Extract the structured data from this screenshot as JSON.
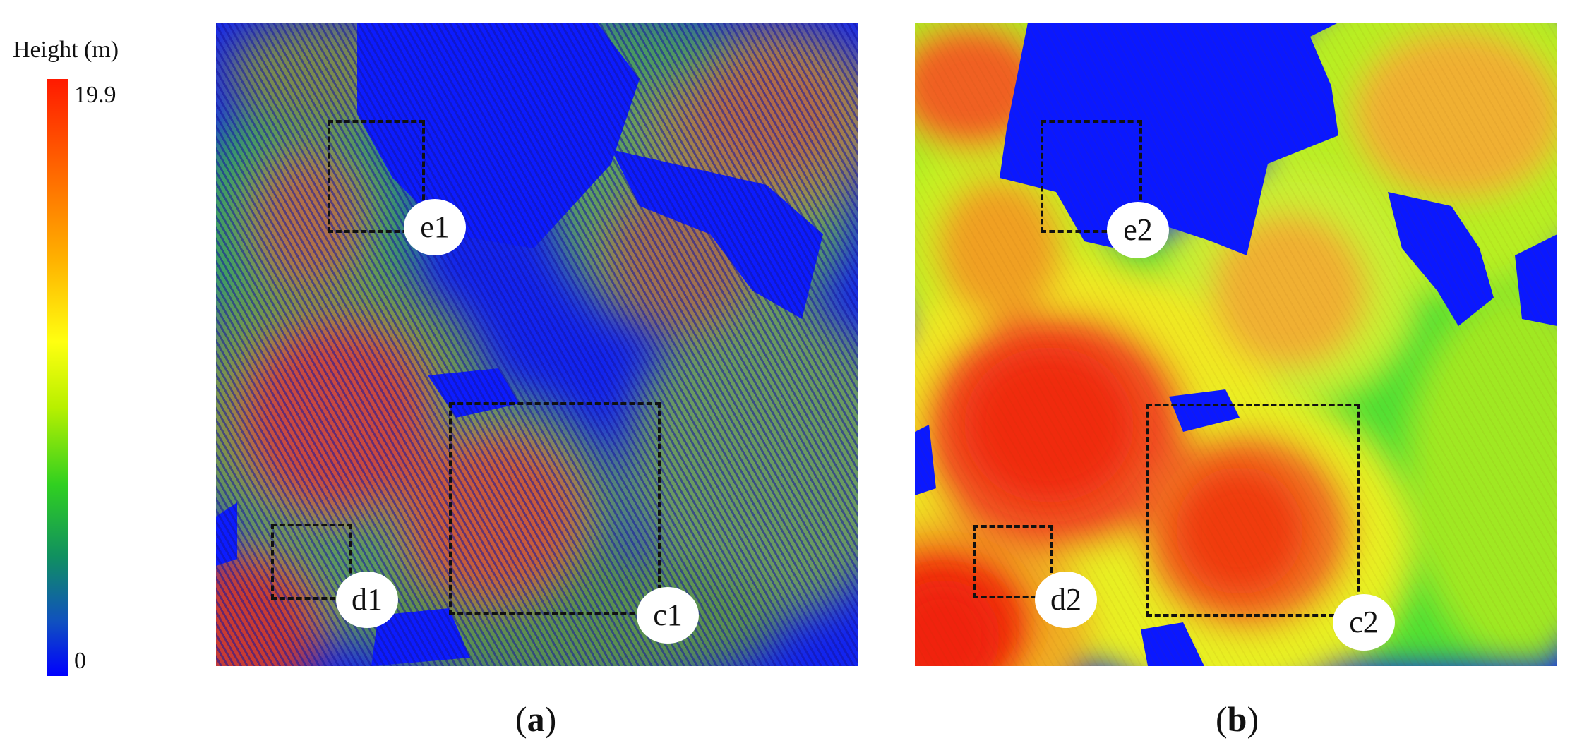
{
  "colorbar": {
    "title": "Height (m)",
    "max_label": "19.9",
    "min_label": "0",
    "colors": [
      "#ff1a00",
      "#ffb000",
      "#ffff10",
      "#30d020",
      "#1050c0",
      "#0000ff"
    ]
  },
  "panels": [
    {
      "id": "a",
      "caption_open": "(",
      "caption_letter": "a",
      "caption_close": ")",
      "regions": [
        {
          "label": "e1"
        },
        {
          "label": "d1"
        },
        {
          "label": "c1"
        }
      ]
    },
    {
      "id": "b",
      "caption_open": "(",
      "caption_letter": "b",
      "caption_close": ")",
      "regions": [
        {
          "label": "e2"
        },
        {
          "label": "d2"
        },
        {
          "label": "c2"
        }
      ]
    }
  ]
}
